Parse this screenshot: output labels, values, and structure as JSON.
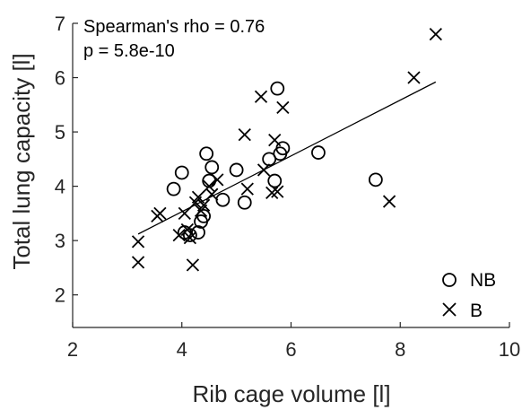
{
  "chart_data": {
    "type": "scatter",
    "title": "",
    "xlabel": "Rib cage volume [l]",
    "ylabel": "Total lung capacity [l]",
    "xlim": [
      2,
      10
    ],
    "ylim": [
      1.4,
      7
    ],
    "xticks": [
      "2",
      "4",
      "6",
      "8",
      "10"
    ],
    "yticks": [
      "2",
      "3",
      "4",
      "5",
      "6",
      "7"
    ],
    "grid": false,
    "legend_position": "bottom-right",
    "annotations": [
      "Spearman's rho = 0.76",
      "p = 5.8e-10"
    ],
    "series": [
      {
        "name": "NB",
        "marker": "circle",
        "points": [
          [
            3.85,
            3.95
          ],
          [
            4.0,
            4.25
          ],
          [
            4.05,
            3.15
          ],
          [
            4.15,
            3.1
          ],
          [
            4.3,
            3.15
          ],
          [
            4.35,
            3.35
          ],
          [
            4.4,
            3.45
          ],
          [
            4.45,
            4.6
          ],
          [
            4.5,
            4.1
          ],
          [
            4.55,
            4.35
          ],
          [
            4.75,
            3.75
          ],
          [
            5.0,
            4.3
          ],
          [
            5.15,
            3.7
          ],
          [
            5.6,
            4.5
          ],
          [
            5.7,
            4.1
          ],
          [
            5.75,
            5.8
          ],
          [
            5.8,
            4.6
          ],
          [
            5.85,
            4.7
          ],
          [
            6.5,
            4.62
          ],
          [
            7.55,
            4.12
          ]
        ]
      },
      {
        "name": "B",
        "marker": "x",
        "points": [
          [
            3.2,
            2.98
          ],
          [
            3.2,
            2.6
          ],
          [
            3.55,
            3.45
          ],
          [
            3.6,
            3.5
          ],
          [
            3.95,
            3.1
          ],
          [
            4.05,
            3.5
          ],
          [
            4.1,
            3.2
          ],
          [
            4.15,
            3.05
          ],
          [
            4.2,
            2.55
          ],
          [
            4.25,
            3.7
          ],
          [
            4.3,
            3.8
          ],
          [
            4.35,
            3.55
          ],
          [
            4.4,
            3.65
          ],
          [
            4.5,
            4.0
          ],
          [
            4.55,
            3.85
          ],
          [
            4.65,
            4.12
          ],
          [
            5.15,
            4.95
          ],
          [
            5.2,
            3.95
          ],
          [
            5.45,
            5.65
          ],
          [
            5.5,
            4.3
          ],
          [
            5.65,
            3.88
          ],
          [
            5.7,
            4.85
          ],
          [
            5.75,
            3.9
          ],
          [
            5.85,
            5.45
          ],
          [
            7.8,
            3.72
          ],
          [
            8.25,
            6.0
          ],
          [
            8.65,
            6.8
          ]
        ]
      }
    ],
    "fit_line": {
      "x": [
        3.2,
        8.65
      ],
      "y": [
        3.12,
        5.92
      ]
    }
  }
}
